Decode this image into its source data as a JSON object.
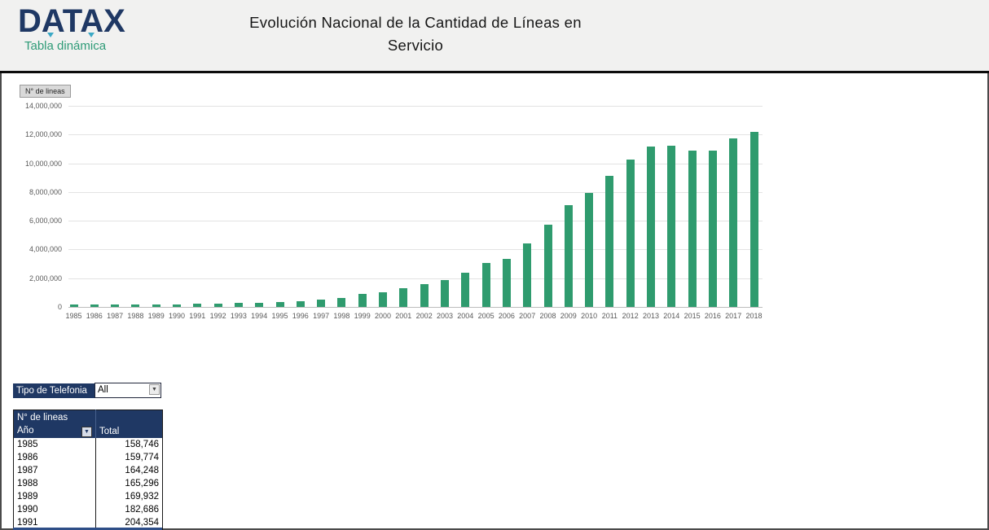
{
  "header": {
    "logo_text": "DATAX",
    "logo_subtitle": "Tabla dinámica",
    "title_line1": "Evolución Nacional de la Cantidad de Líneas en",
    "title_line2": "Servicio"
  },
  "chart": {
    "field_button": "N° de lineas",
    "y_tick_labels": [
      "0",
      "2,000,000",
      "4,000,000",
      "6,000,000",
      "8,000,000",
      "10,000,000",
      "12,000,000",
      "14,000,000"
    ]
  },
  "chart_data": {
    "type": "bar",
    "title": "Evolución Nacional de la Cantidad de Líneas en Servicio",
    "xlabel": "",
    "ylabel": "N° de lineas",
    "ylim": [
      0,
      14000000
    ],
    "ytick_step": 2000000,
    "grid": true,
    "legend": false,
    "bar_color": "#2f9b6e",
    "categories": [
      "1985",
      "1986",
      "1987",
      "1988",
      "1989",
      "1990",
      "1991",
      "1992",
      "1993",
      "1994",
      "1995",
      "1996",
      "1997",
      "1998",
      "1999",
      "2000",
      "2001",
      "2002",
      "2003",
      "2004",
      "2005",
      "2006",
      "2007",
      "2008",
      "2009",
      "2010",
      "2011",
      "2012",
      "2013",
      "2014",
      "2015",
      "2016",
      "2017",
      "2018"
    ],
    "values": [
      158746,
      159774,
      164248,
      165296,
      169932,
      182686,
      204354,
      235000,
      275000,
      310000,
      355000,
      410000,
      500000,
      650000,
      900000,
      1050000,
      1300000,
      1570000,
      1850000,
      2400000,
      3050000,
      3350000,
      4450000,
      5700000,
      7100000,
      7950000,
      9150000,
      10250000,
      11180000,
      11220000,
      10900000,
      10900000,
      11750000,
      12200000
    ]
  },
  "filter": {
    "label": "Tipo de Telefonia",
    "value": "All",
    "dropdown_glyph": "▼"
  },
  "pivot_table": {
    "title": "N° de lineas",
    "row_field": "Año",
    "value_header": "Total",
    "filter_glyph": "▼",
    "rows": [
      {
        "year": "1985",
        "total": "158,746"
      },
      {
        "year": "1986",
        "total": "159,774"
      },
      {
        "year": "1987",
        "total": "164,248"
      },
      {
        "year": "1988",
        "total": "165,296"
      },
      {
        "year": "1989",
        "total": "169,932"
      },
      {
        "year": "1990",
        "total": "182,686"
      },
      {
        "year": "1991",
        "total": "204,354"
      }
    ]
  },
  "colors": {
    "navy": "#1F3864",
    "teal_subtitle": "#2E9B77",
    "bar_green": "#2F9B6E",
    "header_bg": "#F1F1F0",
    "axis_text": "#595959"
  }
}
